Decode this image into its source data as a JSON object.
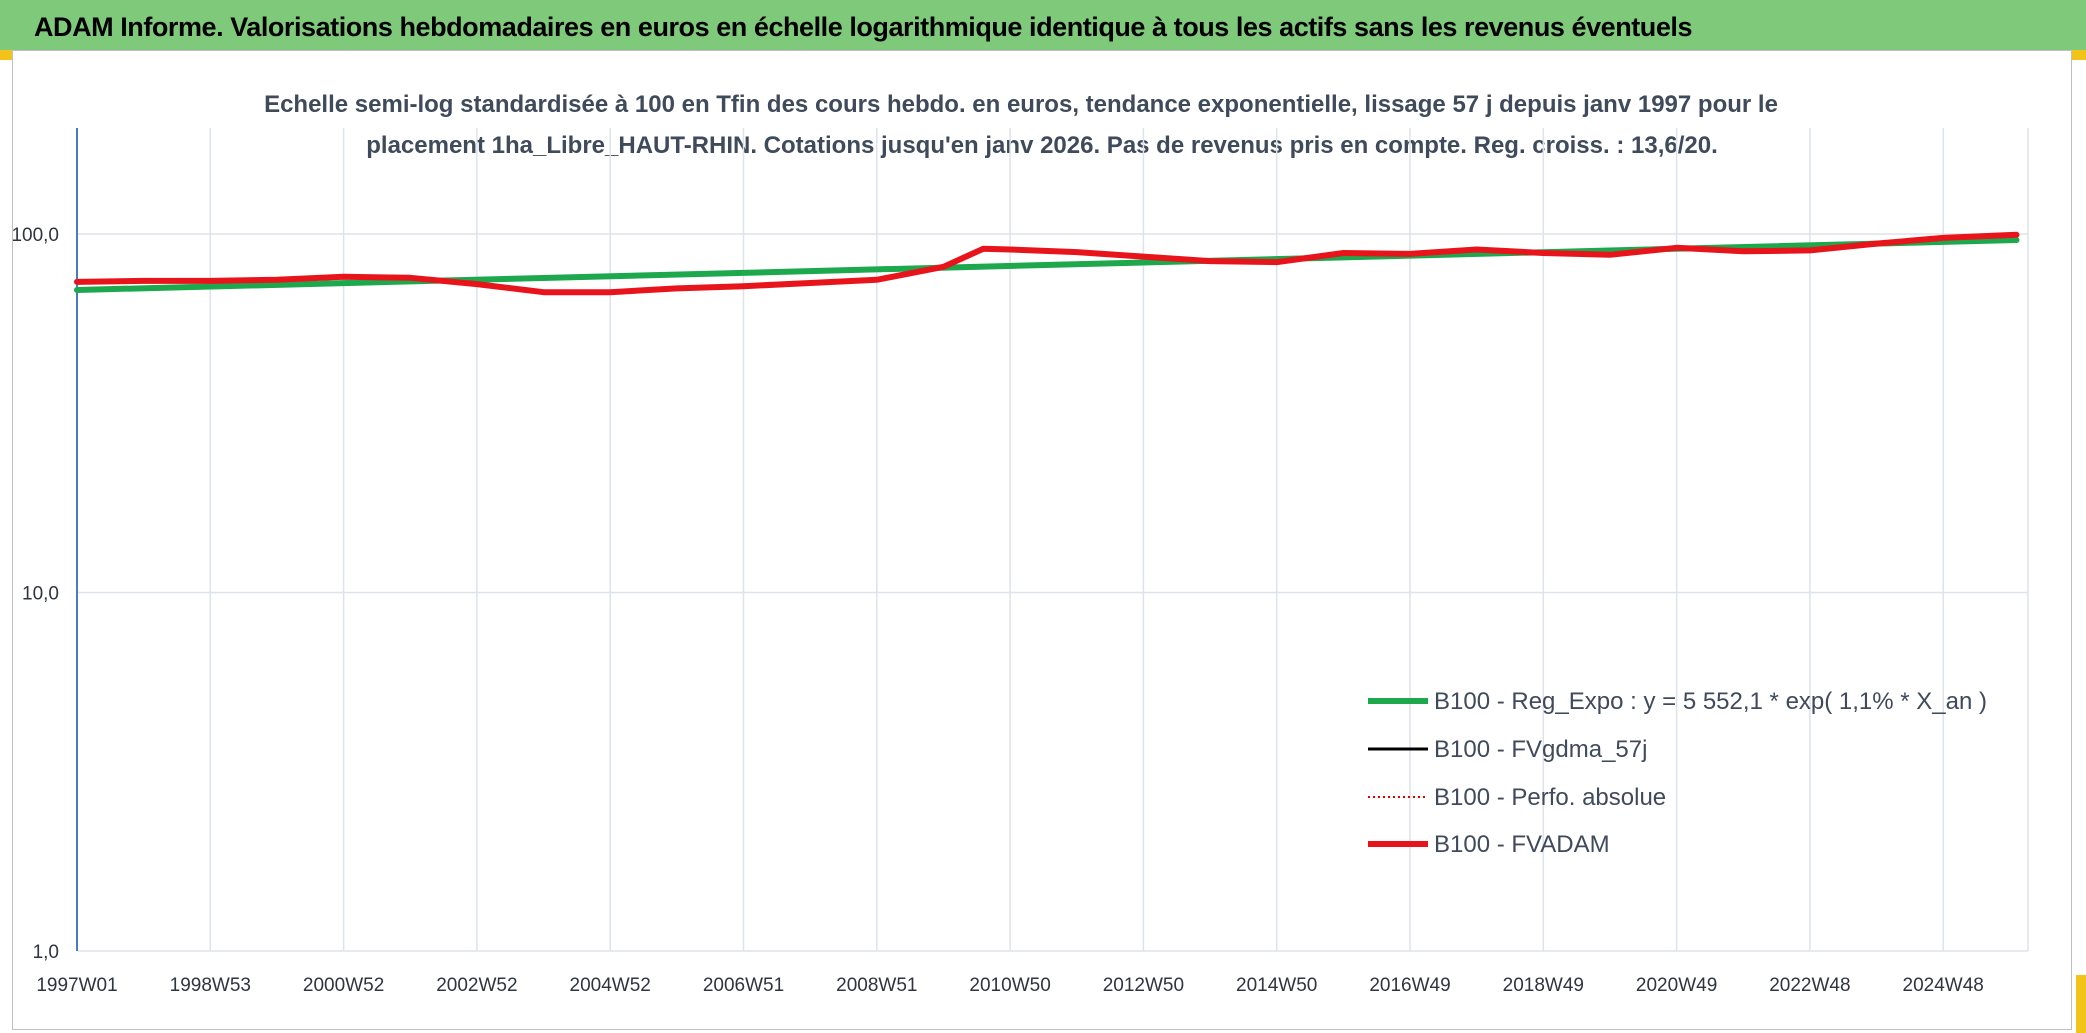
{
  "header": {
    "title": "ADAM Informe. Valorisations hebdomadaires en euros en échelle logarithmique identique à tous les actifs sans les revenus éventuels"
  },
  "colors": {
    "banner": "#7fca7a",
    "accent_corner": "#f2c318",
    "reg_expo": "#1ea84e",
    "fvgdma": "#000000",
    "perfo": "#e00000",
    "fvadam": "#e8141b",
    "grid": "#dde3ea",
    "axis": "#4a7bc0"
  },
  "chart_data": {
    "type": "line",
    "title_line1": "Echelle semi-log standardisée à 100 en Tfin des cours hebdo. en euros, tendance exponentielle, lissage 57 j depuis janv 1997 pour le",
    "title_line2": "placement 1ha_Libre_HAUT-RHIN. Cotations jusqu'en janv 2026. Pas de revenus pris en compte. Reg. croiss. : 13,6/20.",
    "y_scale": "log",
    "ylim": [
      1,
      100
    ],
    "xlim": [
      1997.0,
      2026.1
    ],
    "y_tick_labels": [
      "100,0",
      "10,0",
      "1,0"
    ],
    "y_tick_values": [
      100,
      10,
      1
    ],
    "x_tick_labels": [
      "1997W01",
      "1998W53",
      "2000W52",
      "2002W52",
      "2004W52",
      "2006W51",
      "2008W51",
      "2010W50",
      "2012W50",
      "2014W50",
      "2016W49",
      "2018W49",
      "2020W49",
      "2022W48",
      "2024W48"
    ],
    "x_tick_values": [
      1997.0,
      1999.0,
      2001.0,
      2003.0,
      2005.0,
      2007.0,
      2009.0,
      2011.0,
      2013.0,
      2015.0,
      2017.0,
      2019.0,
      2021.0,
      2023.0,
      2025.0
    ],
    "grid": true,
    "legend_position": "bottom-right",
    "series": [
      {
        "name": "B100 - Reg_Expo : y = 5 552,1 * exp( 1,1% *  X_an )",
        "style": "solid-thick",
        "color": "#1ea84e",
        "x": [
          1997.0,
          2026.1
        ],
        "y": [
          69.8,
          96.2
        ]
      },
      {
        "name": "B100 - FVgdma_57j",
        "style": "solid-thin",
        "color": "#000000",
        "x": [],
        "y": []
      },
      {
        "name": "B100 - Perfo. absolue",
        "style": "dotted",
        "color": "#e00000",
        "x": [],
        "y": []
      },
      {
        "name": "B100 - FVADAM",
        "style": "solid-thick",
        "color": "#e8141b",
        "x": [
          1997.0,
          1998.0,
          1999.0,
          2000.0,
          2001.0,
          2002.0,
          2003.0,
          2004.0,
          2005.0,
          2006.0,
          2007.0,
          2008.0,
          2009.0,
          2010.0,
          2010.6,
          2011.0,
          2012.0,
          2013.0,
          2014.0,
          2015.0,
          2016.0,
          2017.0,
          2018.0,
          2019.0,
          2020.0,
          2021.0,
          2022.0,
          2023.0,
          2024.0,
          2025.0,
          2026.1
        ],
        "y": [
          73.5,
          74.0,
          74.0,
          74.5,
          76.0,
          75.5,
          72.5,
          68.8,
          68.8,
          70.5,
          71.5,
          73.0,
          74.5,
          81.0,
          91.0,
          90.5,
          89.0,
          86.5,
          84.0,
          83.5,
          88.5,
          88.0,
          90.5,
          88.5,
          87.5,
          91.5,
          89.5,
          90.0,
          94.0,
          97.5,
          99.5
        ]
      }
    ]
  }
}
